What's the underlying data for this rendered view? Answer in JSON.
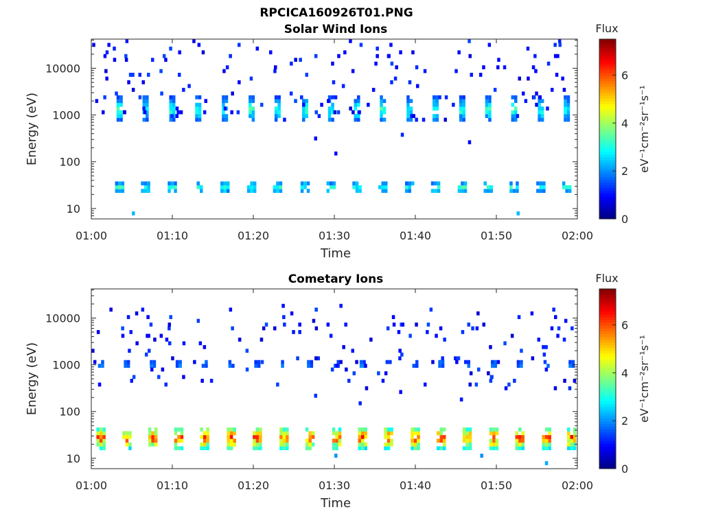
{
  "figure_title": "RPCICA160926T01.PNG",
  "colorbar": {
    "title": "Flux",
    "unit_label": "eV⁻¹cm⁻²sr⁻¹s⁻¹",
    "range": [
      0,
      7.5
    ],
    "ticks": [
      "0",
      "2",
      "4",
      "6"
    ],
    "tick_values": [
      0,
      2,
      4,
      6
    ],
    "colormap": "jet"
  },
  "chart_data": [
    {
      "type": "heatmap",
      "title": "Solar Wind Ions",
      "xlabel": "Time",
      "ylabel": "Energy (eV)",
      "y_scale": "log",
      "xlim": [
        "01:00",
        "02:00"
      ],
      "ylim": [
        6,
        42000
      ],
      "xticks": [
        "01:00",
        "01:10",
        "01:20",
        "01:30",
        "01:40",
        "01:50",
        "02:00"
      ],
      "yticks": [
        "10",
        "100",
        "1000",
        "10000"
      ],
      "ytick_values": [
        10,
        100,
        1000,
        10000
      ],
      "burst_times_min": [
        3.5,
        6.7,
        10,
        13.2,
        16.5,
        19.8,
        23,
        26.4,
        29.6,
        32.8,
        36,
        39.3,
        42.5,
        45.8,
        49,
        52.2,
        55.5,
        58.7
      ],
      "bands": [
        {
          "e_low": 700,
          "e_high": 2500,
          "flux_peak": 3.2
        },
        {
          "e_low": 20,
          "e_high": 40,
          "flux_peak": 3.0
        }
      ],
      "sparse_points": [
        {
          "t": 1.5,
          "e": 20000,
          "v": 1.0
        },
        {
          "t": 4.2,
          "e": 35000,
          "v": 1.1
        },
        {
          "t": 9.0,
          "e": 15000,
          "v": 0.9
        },
        {
          "t": 13.1,
          "e": 30000,
          "v": 1.0
        },
        {
          "t": 16.2,
          "e": 8000,
          "v": 0.8
        },
        {
          "t": 20.3,
          "e": 25000,
          "v": 1.0
        },
        {
          "t": 24.5,
          "e": 12000,
          "v": 1.2
        },
        {
          "t": 31.8,
          "e": 38000,
          "v": 1.0
        },
        {
          "t": 36.5,
          "e": 18000,
          "v": 0.9
        },
        {
          "t": 41.0,
          "e": 9000,
          "v": 1.1
        },
        {
          "t": 45.2,
          "e": 22000,
          "v": 1.0
        },
        {
          "t": 50.1,
          "e": 15000,
          "v": 1.0
        },
        {
          "t": 53.7,
          "e": 28000,
          "v": 1.1
        },
        {
          "t": 58.0,
          "e": 6000,
          "v": 1.0
        },
        {
          "t": 27.5,
          "e": 300,
          "v": 1.0
        },
        {
          "t": 38.2,
          "e": 400,
          "v": 1.2
        },
        {
          "t": 46.5,
          "e": 250,
          "v": 1.0
        },
        {
          "t": 30.0,
          "e": 150,
          "v": 1.0
        },
        {
          "t": 5.0,
          "e": 8,
          "v": 2.3
        },
        {
          "t": 52.5,
          "e": 8,
          "v": 2.3
        }
      ]
    },
    {
      "type": "heatmap",
      "title": "Cometary Ions",
      "xlabel": "Time",
      "ylabel": "Energy (eV)",
      "y_scale": "log",
      "xlim": [
        "01:00",
        "02:00"
      ],
      "ylim": [
        6,
        42000
      ],
      "xticks": [
        "01:00",
        "01:10",
        "01:20",
        "01:30",
        "01:40",
        "01:50",
        "02:00"
      ],
      "yticks": [
        "10",
        "100",
        "1000",
        "10000"
      ],
      "ytick_values": [
        10,
        100,
        1000,
        10000
      ],
      "burst_times_min": [
        1.2,
        4.4,
        7.6,
        10.8,
        14.0,
        17.3,
        20.5,
        23.8,
        27.0,
        30.3,
        33.5,
        36.7,
        40.0,
        43.2,
        46.4,
        49.7,
        52.9,
        56.2,
        59.3
      ],
      "bands": [
        {
          "e_low": 900,
          "e_high": 1200,
          "flux_peak": 2.5
        },
        {
          "e_low": 15,
          "e_high": 50,
          "flux_peak": 5.8
        }
      ],
      "sparse_points": [
        {
          "t": 17.0,
          "e": 16000,
          "v": 1.0
        },
        {
          "t": 23.5,
          "e": 18000,
          "v": 1.0
        },
        {
          "t": 54.2,
          "e": 12000,
          "v": 1.0
        },
        {
          "t": 3.7,
          "e": 4000,
          "v": 1.0
        },
        {
          "t": 6.9,
          "e": 4000,
          "v": 1.0
        },
        {
          "t": 29.4,
          "e": 4000,
          "v": 1.1
        },
        {
          "t": 42.4,
          "e": 4000,
          "v": 1.0
        },
        {
          "t": 57.4,
          "e": 4000,
          "v": 1.0
        },
        {
          "t": 27.5,
          "e": 200,
          "v": 1.3
        },
        {
          "t": 33.0,
          "e": 150,
          "v": 1.2
        },
        {
          "t": 38.0,
          "e": 250,
          "v": 1.0
        },
        {
          "t": 45.5,
          "e": 180,
          "v": 1.1
        },
        {
          "t": 51.0,
          "e": 300,
          "v": 1.0
        },
        {
          "t": 56.0,
          "e": 8,
          "v": 2.2
        },
        {
          "t": 30.0,
          "e": 12,
          "v": 2.0
        },
        {
          "t": 48.0,
          "e": 12,
          "v": 2.0
        }
      ]
    }
  ]
}
